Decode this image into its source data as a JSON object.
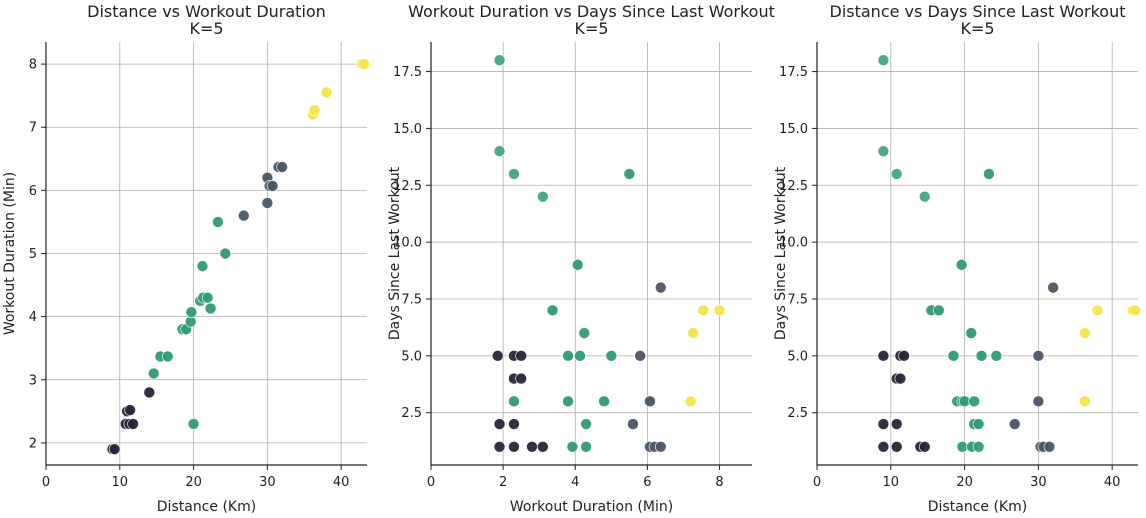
{
  "chart_data": [
    {
      "type": "scatter",
      "title": "Distance vs Workout Duration",
      "subtitle": "K=5",
      "xlabel": "Distance (Km)",
      "ylabel": "Workout Duration (Min)",
      "xlim": [
        0,
        43.5
      ],
      "ylim": [
        1.65,
        8.35
      ],
      "xticks": [
        0,
        10,
        20,
        30,
        40
      ],
      "yticks": [
        2,
        3,
        4,
        5,
        6,
        7,
        8
      ],
      "grid": true,
      "points": [
        {
          "x": 9.0,
          "y": 1.9,
          "cluster": 0
        },
        {
          "x": 9.3,
          "y": 1.9,
          "cluster": 0
        },
        {
          "x": 10.8,
          "y": 2.3,
          "cluster": 0
        },
        {
          "x": 11.3,
          "y": 2.3,
          "cluster": 0
        },
        {
          "x": 11.8,
          "y": 2.3,
          "cluster": 0
        },
        {
          "x": 11.0,
          "y": 2.5,
          "cluster": 0
        },
        {
          "x": 11.4,
          "y": 2.52,
          "cluster": 0
        },
        {
          "x": 14.0,
          "y": 2.8,
          "cluster": 0
        },
        {
          "x": 14.6,
          "y": 3.1,
          "cluster": 3
        },
        {
          "x": 15.5,
          "y": 3.37,
          "cluster": 3
        },
        {
          "x": 16.5,
          "y": 3.37,
          "cluster": 3
        },
        {
          "x": 18.5,
          "y": 3.8,
          "cluster": 3
        },
        {
          "x": 19.0,
          "y": 3.8,
          "cluster": 3
        },
        {
          "x": 19.6,
          "y": 3.92,
          "cluster": 3
        },
        {
          "x": 19.7,
          "y": 4.07,
          "cluster": 3
        },
        {
          "x": 20.9,
          "y": 4.25,
          "cluster": 3
        },
        {
          "x": 21.3,
          "y": 4.3,
          "cluster": 3
        },
        {
          "x": 21.9,
          "y": 4.3,
          "cluster": 3
        },
        {
          "x": 22.3,
          "y": 4.13,
          "cluster": 3
        },
        {
          "x": 21.2,
          "y": 4.8,
          "cluster": 3
        },
        {
          "x": 23.3,
          "y": 5.5,
          "cluster": 3
        },
        {
          "x": 24.3,
          "y": 5.0,
          "cluster": 3
        },
        {
          "x": 20.0,
          "y": 2.3,
          "cluster": 3
        },
        {
          "x": 26.8,
          "y": 5.6,
          "cluster": 1
        },
        {
          "x": 30.0,
          "y": 5.8,
          "cluster": 1
        },
        {
          "x": 30.0,
          "y": 6.2,
          "cluster": 1
        },
        {
          "x": 30.3,
          "y": 6.07,
          "cluster": 1
        },
        {
          "x": 30.7,
          "y": 6.07,
          "cluster": 1
        },
        {
          "x": 31.5,
          "y": 6.37,
          "cluster": 1
        },
        {
          "x": 32.0,
          "y": 6.37,
          "cluster": 1
        },
        {
          "x": 36.2,
          "y": 7.2,
          "cluster": 4
        },
        {
          "x": 36.4,
          "y": 7.27,
          "cluster": 4
        },
        {
          "x": 38.0,
          "y": 7.55,
          "cluster": 4
        },
        {
          "x": 42.8,
          "y": 8.0,
          "cluster": 4
        },
        {
          "x": 43.1,
          "y": 8.0,
          "cluster": 4
        }
      ]
    },
    {
      "type": "scatter",
      "title": "Workout Duration vs Days Since Last Workout",
      "subtitle": "K=5",
      "xlabel": "Workout Duration (Min)",
      "ylabel": "Days Since Last Workout",
      "xlim": [
        0,
        8.9
      ],
      "ylim": [
        0.2,
        18.8
      ],
      "xticks": [
        0,
        2,
        4,
        6,
        8
      ],
      "yticks": [
        2.5,
        5.0,
        7.5,
        10.0,
        12.5,
        15.0,
        17.5
      ],
      "grid": true,
      "points": [
        {
          "x": 1.9,
          "y": 18,
          "cluster": 2
        },
        {
          "x": 1.9,
          "y": 14,
          "cluster": 2
        },
        {
          "x": 2.3,
          "y": 13,
          "cluster": 2
        },
        {
          "x": 3.1,
          "y": 12,
          "cluster": 2
        },
        {
          "x": 1.85,
          "y": 5,
          "cluster": 0
        },
        {
          "x": 1.9,
          "y": 2,
          "cluster": 0
        },
        {
          "x": 1.9,
          "y": 1,
          "cluster": 0
        },
        {
          "x": 2.3,
          "y": 5,
          "cluster": 0
        },
        {
          "x": 2.5,
          "y": 5,
          "cluster": 0
        },
        {
          "x": 2.3,
          "y": 4,
          "cluster": 0
        },
        {
          "x": 2.5,
          "y": 4,
          "cluster": 0
        },
        {
          "x": 2.3,
          "y": 2,
          "cluster": 0
        },
        {
          "x": 2.3,
          "y": 1,
          "cluster": 0
        },
        {
          "x": 2.8,
          "y": 1,
          "cluster": 0
        },
        {
          "x": 3.1,
          "y": 1,
          "cluster": 0
        },
        {
          "x": 2.3,
          "y": 3,
          "cluster": 3
        },
        {
          "x": 3.37,
          "y": 7,
          "cluster": 3
        },
        {
          "x": 3.8,
          "y": 5,
          "cluster": 3
        },
        {
          "x": 3.8,
          "y": 3,
          "cluster": 3
        },
        {
          "x": 3.92,
          "y": 1,
          "cluster": 3
        },
        {
          "x": 4.07,
          "y": 9,
          "cluster": 3
        },
        {
          "x": 4.13,
          "y": 5,
          "cluster": 3
        },
        {
          "x": 4.25,
          "y": 6,
          "cluster": 3
        },
        {
          "x": 4.3,
          "y": 2,
          "cluster": 3
        },
        {
          "x": 4.3,
          "y": 1,
          "cluster": 3
        },
        {
          "x": 4.8,
          "y": 3,
          "cluster": 3
        },
        {
          "x": 5.0,
          "y": 5,
          "cluster": 3
        },
        {
          "x": 5.5,
          "y": 13,
          "cluster": 3
        },
        {
          "x": 5.6,
          "y": 2,
          "cluster": 1
        },
        {
          "x": 5.8,
          "y": 5,
          "cluster": 1
        },
        {
          "x": 6.07,
          "y": 3,
          "cluster": 1
        },
        {
          "x": 6.07,
          "y": 1,
          "cluster": 1
        },
        {
          "x": 6.2,
          "y": 1,
          "cluster": 1
        },
        {
          "x": 6.37,
          "y": 1,
          "cluster": 1
        },
        {
          "x": 6.37,
          "y": 8,
          "cluster": 1
        },
        {
          "x": 7.2,
          "y": 3,
          "cluster": 4
        },
        {
          "x": 7.27,
          "y": 6,
          "cluster": 4
        },
        {
          "x": 7.55,
          "y": 7,
          "cluster": 4
        },
        {
          "x": 8.0,
          "y": 7,
          "cluster": 4
        }
      ]
    },
    {
      "type": "scatter",
      "title": "Distance vs Days Since Last Workout",
      "subtitle": "K=5",
      "xlabel": "Distance (Km)",
      "ylabel": "Days Since Last Workout",
      "xlim": [
        0,
        43.5
      ],
      "ylim": [
        0.2,
        18.8
      ],
      "xticks": [
        0,
        10,
        20,
        30,
        40
      ],
      "yticks": [
        2.5,
        5.0,
        7.5,
        10.0,
        12.5,
        15.0,
        17.5
      ],
      "grid": true,
      "points": [
        {
          "x": 9.0,
          "y": 18,
          "cluster": 2
        },
        {
          "x": 9.0,
          "y": 14,
          "cluster": 2
        },
        {
          "x": 10.8,
          "y": 13,
          "cluster": 2
        },
        {
          "x": 14.6,
          "y": 12,
          "cluster": 2
        },
        {
          "x": 9.0,
          "y": 5,
          "cluster": 0
        },
        {
          "x": 9.0,
          "y": 2,
          "cluster": 0
        },
        {
          "x": 9.0,
          "y": 1,
          "cluster": 0
        },
        {
          "x": 11.3,
          "y": 5,
          "cluster": 0
        },
        {
          "x": 11.8,
          "y": 5,
          "cluster": 0
        },
        {
          "x": 10.8,
          "y": 4,
          "cluster": 0
        },
        {
          "x": 11.3,
          "y": 4,
          "cluster": 0
        },
        {
          "x": 10.8,
          "y": 2,
          "cluster": 0
        },
        {
          "x": 10.8,
          "y": 1,
          "cluster": 0
        },
        {
          "x": 14.0,
          "y": 1,
          "cluster": 0
        },
        {
          "x": 14.6,
          "y": 1,
          "cluster": 0
        },
        {
          "x": 15.5,
          "y": 7,
          "cluster": 3
        },
        {
          "x": 16.5,
          "y": 7,
          "cluster": 3
        },
        {
          "x": 18.5,
          "y": 5,
          "cluster": 3
        },
        {
          "x": 19.0,
          "y": 3,
          "cluster": 3
        },
        {
          "x": 19.6,
          "y": 9,
          "cluster": 3
        },
        {
          "x": 19.7,
          "y": 3,
          "cluster": 3
        },
        {
          "x": 19.7,
          "y": 1,
          "cluster": 3
        },
        {
          "x": 20.0,
          "y": 3,
          "cluster": 3
        },
        {
          "x": 20.9,
          "y": 6,
          "cluster": 3
        },
        {
          "x": 21.0,
          "y": 1,
          "cluster": 3
        },
        {
          "x": 21.3,
          "y": 3,
          "cluster": 3
        },
        {
          "x": 21.3,
          "y": 2,
          "cluster": 3
        },
        {
          "x": 21.9,
          "y": 2,
          "cluster": 3
        },
        {
          "x": 21.9,
          "y": 1,
          "cluster": 3
        },
        {
          "x": 22.3,
          "y": 5,
          "cluster": 3
        },
        {
          "x": 23.3,
          "y": 13,
          "cluster": 3
        },
        {
          "x": 24.3,
          "y": 5,
          "cluster": 3
        },
        {
          "x": 26.8,
          "y": 2,
          "cluster": 1
        },
        {
          "x": 30.0,
          "y": 5,
          "cluster": 1
        },
        {
          "x": 30.0,
          "y": 3,
          "cluster": 1
        },
        {
          "x": 30.3,
          "y": 1,
          "cluster": 1
        },
        {
          "x": 30.7,
          "y": 1,
          "cluster": 1
        },
        {
          "x": 31.5,
          "y": 1,
          "cluster": 1
        },
        {
          "x": 32.0,
          "y": 8,
          "cluster": 1
        },
        {
          "x": 36.3,
          "y": 6,
          "cluster": 4
        },
        {
          "x": 36.3,
          "y": 3,
          "cluster": 4
        },
        {
          "x": 38.0,
          "y": 7,
          "cluster": 4
        },
        {
          "x": 42.8,
          "y": 7,
          "cluster": 4
        },
        {
          "x": 43.1,
          "y": 7,
          "cluster": 4
        }
      ]
    }
  ],
  "cluster_colors": [
    "#2a2438",
    "#4c5565",
    "#42a584",
    "#2f9a7a",
    "#f4e548"
  ]
}
